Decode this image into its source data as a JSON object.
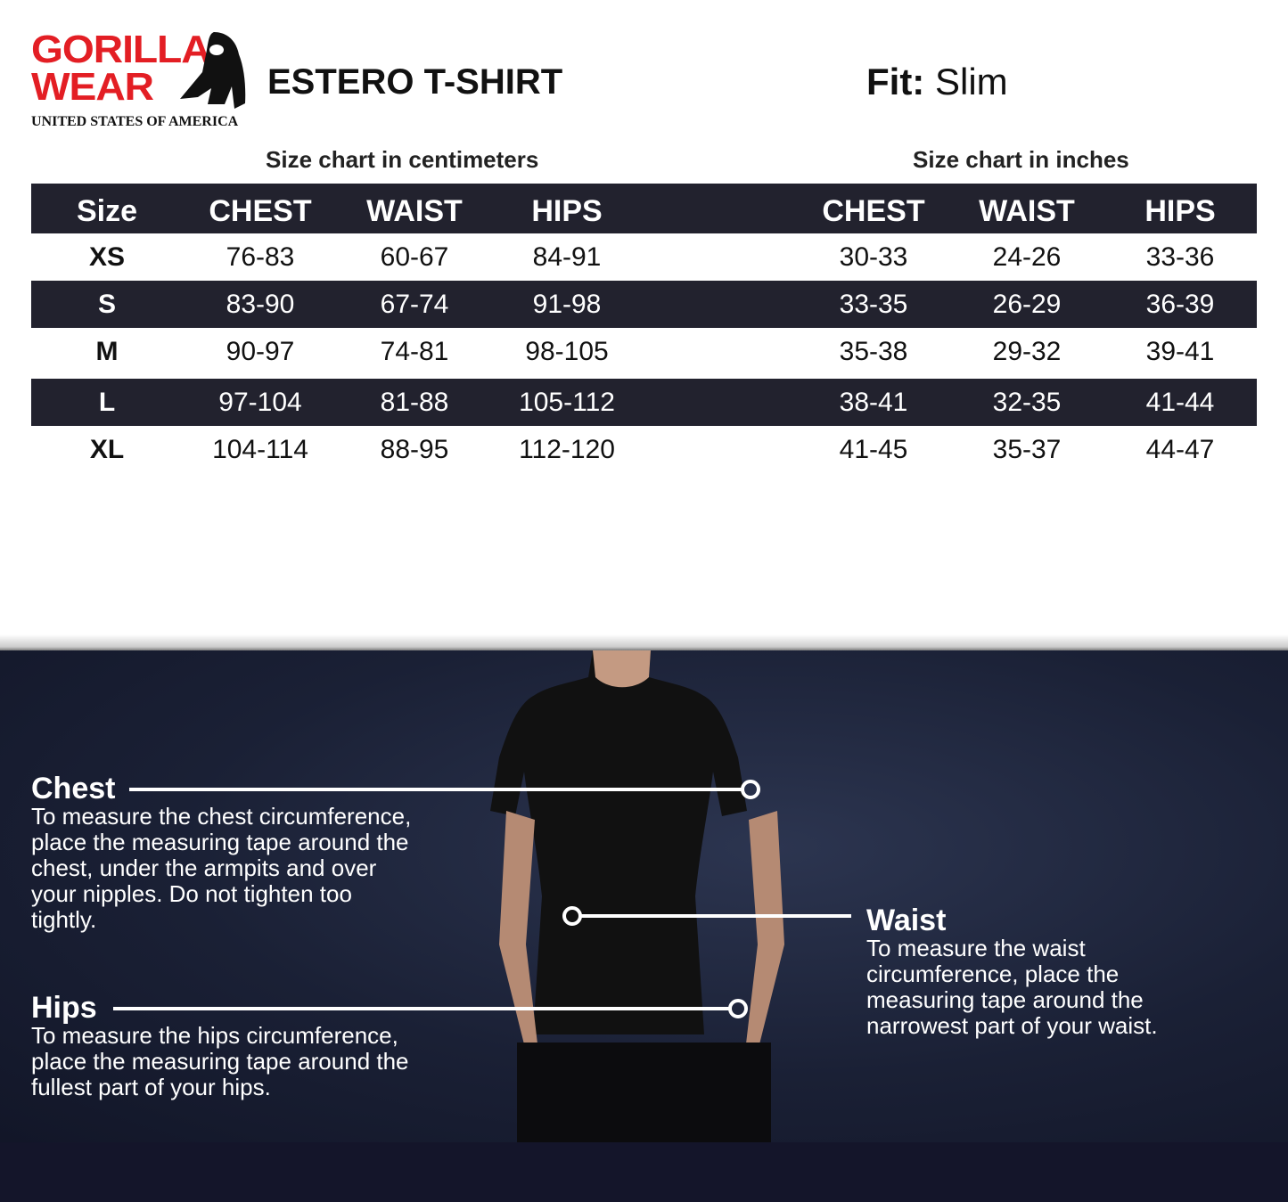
{
  "brand": {
    "logo_text_line1": "GORILLA",
    "logo_text_line2": "WEAR",
    "logo_subtitle": "UNITED STATES OF AMERICA",
    "accent_color": "#e31e24"
  },
  "product": {
    "title": "ESTERO T-SHIRT",
    "fit_label": "Fit:",
    "fit_value": "Slim"
  },
  "cm_table": {
    "caption": "Size chart in centimeters",
    "headers": [
      "Size",
      "CHEST",
      "WAIST",
      "HIPS"
    ]
  },
  "inch_table": {
    "caption": "Size chart in inches",
    "headers": [
      "CHEST",
      "WAIST",
      "HIPS"
    ]
  },
  "rows": [
    {
      "size": "XS",
      "cm": [
        "76-83",
        "60-67",
        "84-91"
      ],
      "in": [
        "30-33",
        "24-26",
        "33-36"
      ]
    },
    {
      "size": "S",
      "cm": [
        "83-90",
        "67-74",
        "91-98"
      ],
      "in": [
        "33-35",
        "26-29",
        "36-39"
      ]
    },
    {
      "size": "M",
      "cm": [
        "90-97",
        "74-81",
        "98-105"
      ],
      "in": [
        "35-38",
        "29-32",
        "39-41"
      ]
    },
    {
      "size": "L",
      "cm": [
        "97-104",
        "81-88",
        "105-112"
      ],
      "in": [
        "38-41",
        "32-35",
        "41-44"
      ]
    },
    {
      "size": "XL",
      "cm": [
        "104-114",
        "88-95",
        "112-120"
      ],
      "in": [
        "41-45",
        "35-37",
        "44-47"
      ]
    }
  ],
  "header_color": "#22222e",
  "measure": {
    "chest": {
      "title": "Chest",
      "text": "To measure the chest circumference, place the measuring tape around the chest, under the armpits and over your nipples. Do not tighten too tightly."
    },
    "waist": {
      "title": "Waist",
      "text": "To measure the waist circumference, place the measuring tape around the narrowest part of your waist."
    },
    "hips": {
      "title": "Hips",
      "text": "To measure the hips circumference, place the measuring tape around the fullest part of your hips."
    }
  }
}
